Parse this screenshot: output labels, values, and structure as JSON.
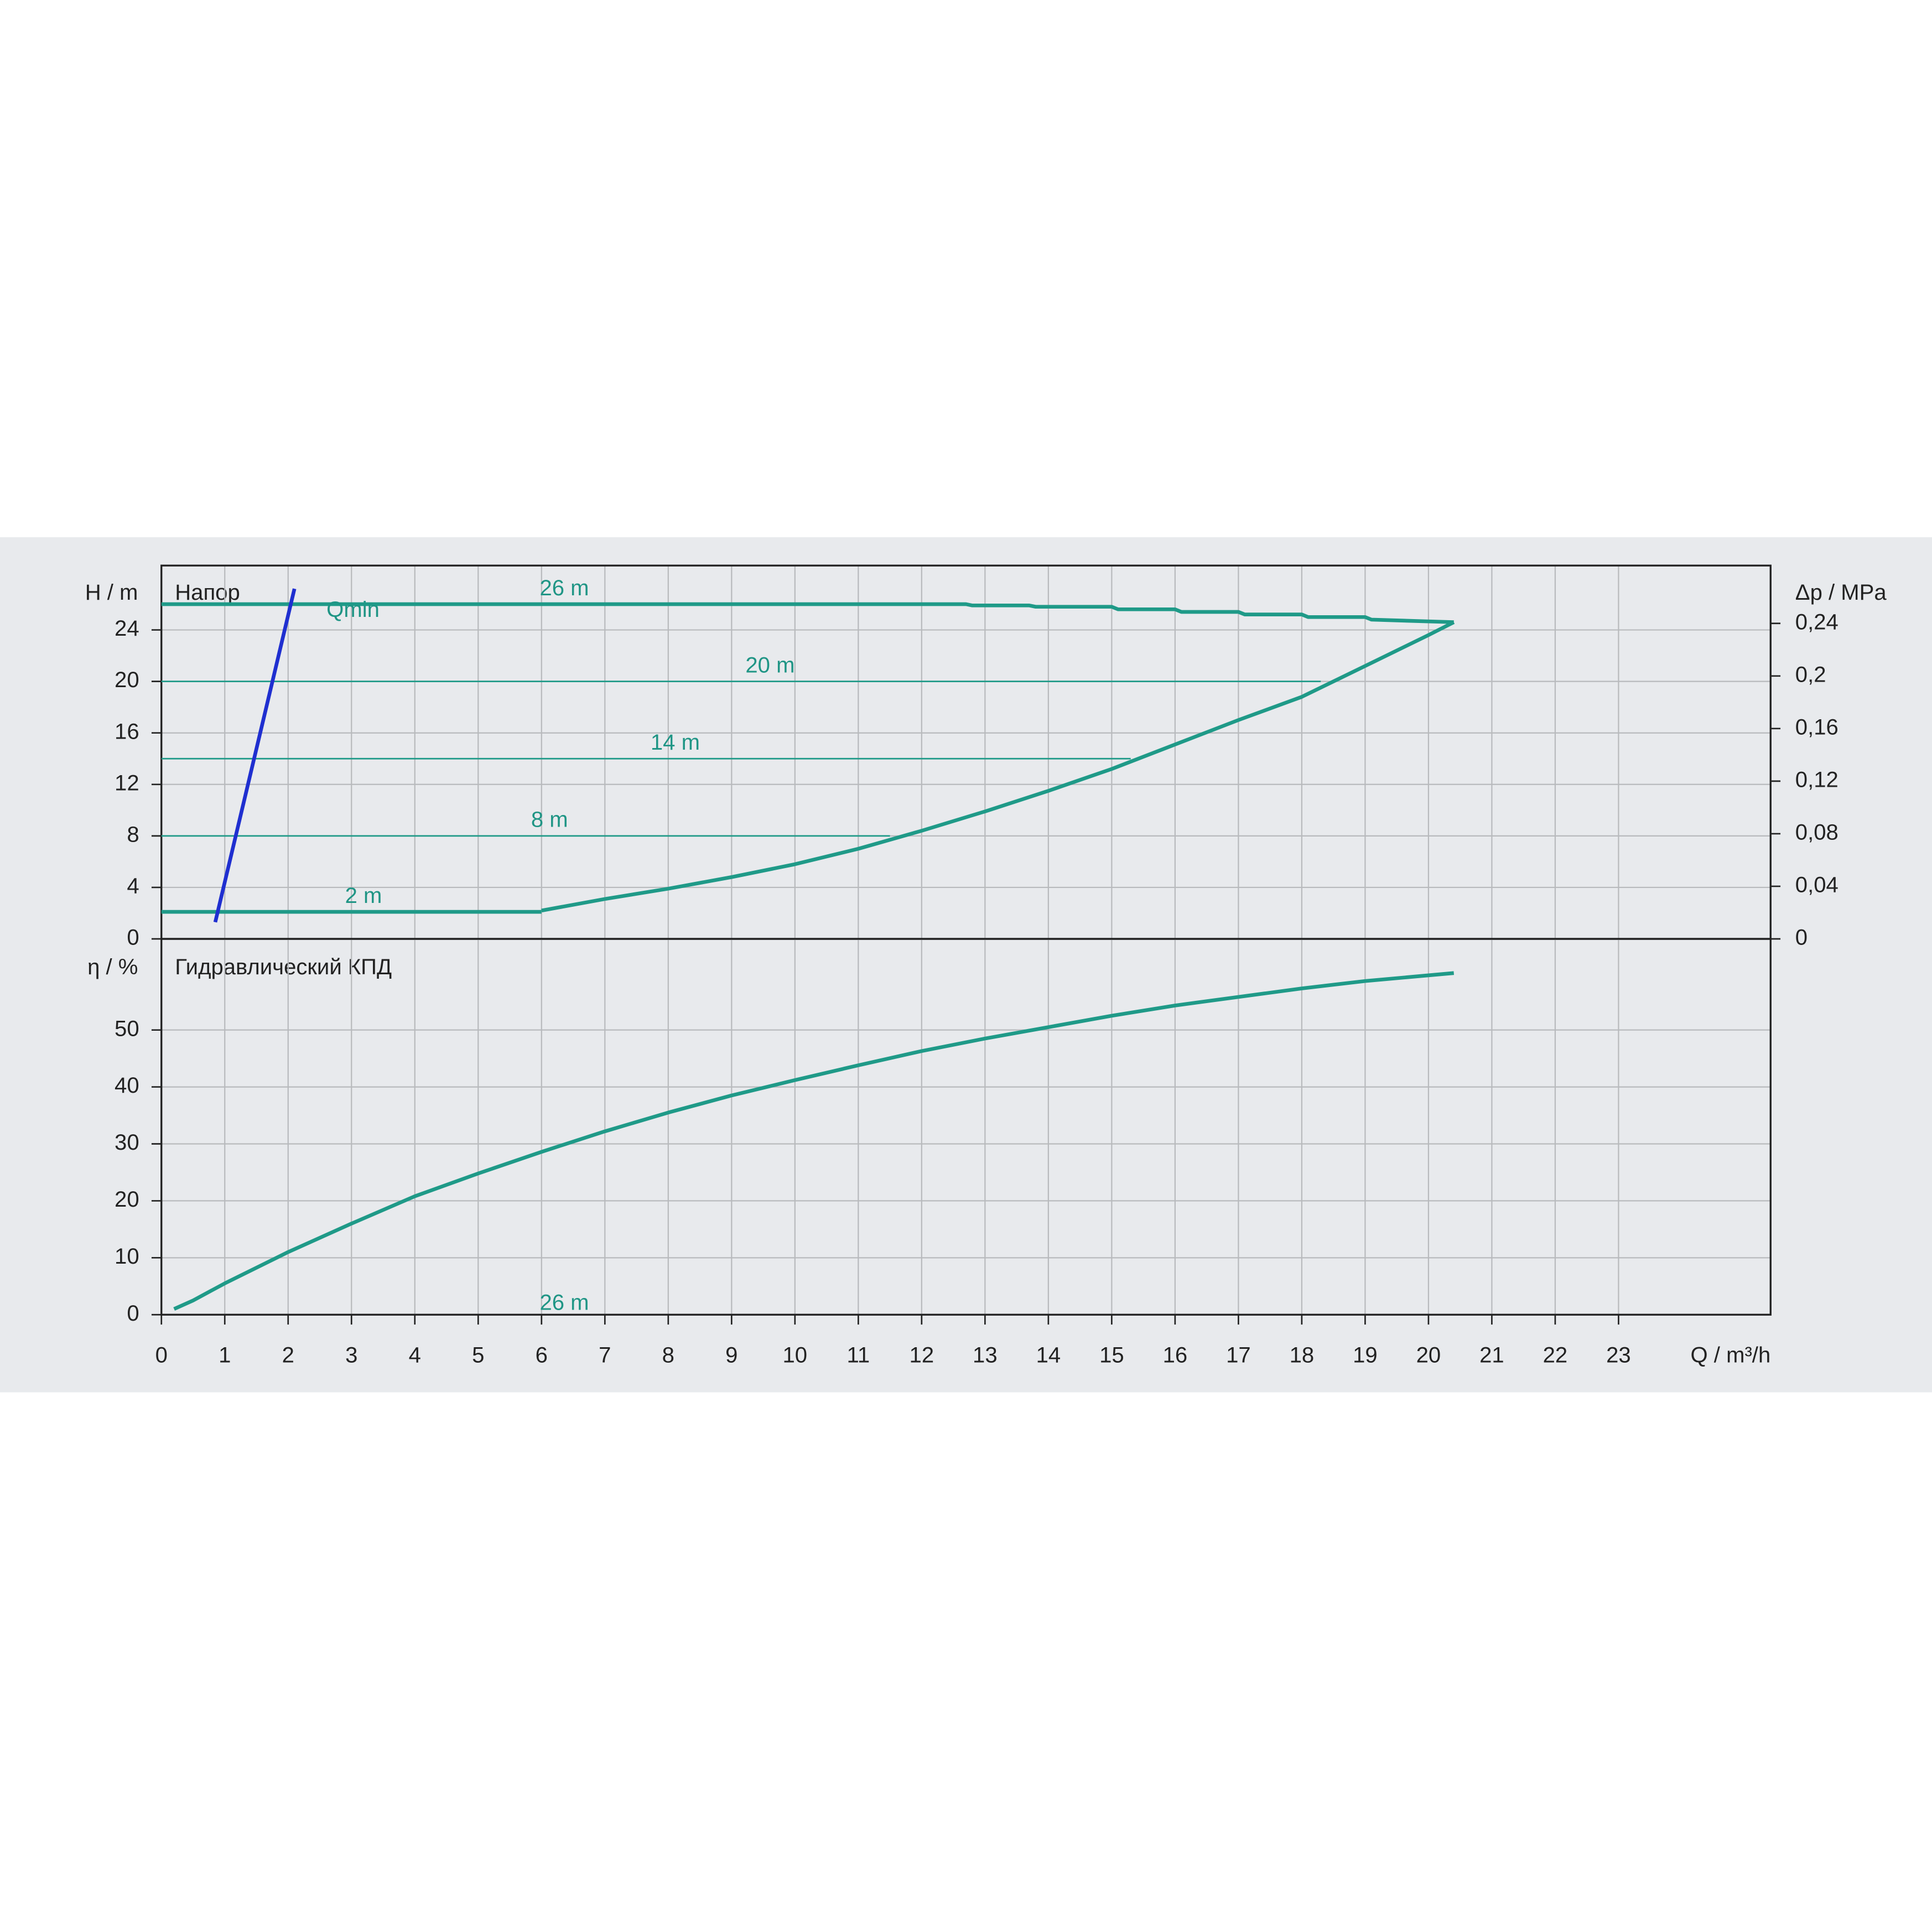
{
  "chart_data": [
    {
      "type": "line",
      "title": "Напор",
      "ylabel": "H / m",
      "y2label": "Δp / MPa",
      "xlim": [
        0,
        25.4
      ],
      "ylim": [
        0,
        29
      ],
      "yticks": [
        0,
        4,
        8,
        12,
        16,
        20,
        24
      ],
      "y2lim": [
        0,
        0.284
      ],
      "y2ticks": [
        0,
        {
          "value": 0.04,
          "label": "0,04"
        },
        {
          "value": 0.08,
          "label": "0,08"
        },
        {
          "value": 0.12,
          "label": "0,12"
        },
        {
          "value": 0.16,
          "label": "0,16"
        },
        {
          "value": 0.2,
          "label": "0,2"
        },
        {
          "value": 0.24,
          "label": "0,24"
        }
      ],
      "grid": true,
      "series": [
        {
          "name": "26 m",
          "color": "#1f9a88",
          "line_width": 3,
          "x": [
            0,
            12.7,
            12.8,
            13.7,
            13.8,
            15,
            15.1,
            16,
            16.1,
            17,
            17.1,
            18,
            18.1,
            19,
            19.1,
            20.4
          ],
          "values": [
            26,
            26,
            25.9,
            25.9,
            25.8,
            25.8,
            25.6,
            25.6,
            25.4,
            25.4,
            25.2,
            25.2,
            25,
            25,
            24.8,
            24.6
          ]
        },
        {
          "name": "20 m",
          "color": "#1f9a88",
          "line_width": 1.2,
          "x": [
            0,
            18.3
          ],
          "values": [
            20,
            20
          ]
        },
        {
          "name": "14 m",
          "color": "#1f9a88",
          "line_width": 1.2,
          "x": [
            0,
            15.3
          ],
          "values": [
            14,
            14
          ]
        },
        {
          "name": "8 m",
          "color": "#1f9a88",
          "line_width": 1.2,
          "x": [
            0,
            11.5
          ],
          "values": [
            8,
            8
          ]
        },
        {
          "name": "2 m",
          "color": "#1f9a88",
          "line_width": 3,
          "x": [
            0,
            6
          ],
          "values": [
            2.1,
            2.1
          ]
        },
        {
          "color": "#1f9a88",
          "line_width": 3,
          "x": [
            6,
            7,
            8,
            9,
            10,
            11,
            12,
            13,
            14,
            15,
            16,
            17,
            18,
            19,
            20,
            20.4
          ],
          "values": [
            2.2,
            3.1,
            3.9,
            4.8,
            5.8,
            7,
            8.4,
            9.9,
            11.5,
            13.2,
            15.1,
            17,
            18.8,
            21.2,
            23.6,
            24.6
          ]
        },
        {
          "name": "Qmin",
          "color": "#1f2fd0",
          "line_width": 3,
          "x": [
            0.85,
            2.1
          ],
          "values": [
            1.3,
            27.2
          ]
        }
      ]
    },
    {
      "type": "line",
      "title": "Гидравлический КПД",
      "ylabel": "η / %",
      "xlabel": "Q / m³/h",
      "xlim": [
        0,
        25.4
      ],
      "ylim": [
        0,
        66
      ],
      "xticks": [
        0,
        1,
        2,
        3,
        4,
        5,
        6,
        7,
        8,
        9,
        10,
        11,
        12,
        13,
        14,
        15,
        16,
        17,
        18,
        19,
        20,
        21,
        22,
        23
      ],
      "yticks": [
        0,
        10,
        20,
        30,
        40,
        50
      ],
      "grid": true,
      "series": [
        {
          "name": "26 m",
          "color": "#1f9a88",
          "line_width": 3,
          "x": [
            0.2,
            0.5,
            1,
            2,
            3,
            4,
            5,
            6,
            7,
            8,
            9,
            10,
            11,
            12,
            13,
            14,
            15,
            16,
            17,
            18,
            19,
            20.4
          ],
          "values": [
            1,
            2.5,
            5.5,
            11,
            16,
            20.8,
            24.8,
            28.6,
            32.2,
            35.5,
            38.5,
            41.2,
            43.8,
            46.3,
            48.5,
            50.5,
            52.5,
            54.3,
            55.8,
            57.3,
            58.6,
            60
          ]
        }
      ]
    }
  ]
}
